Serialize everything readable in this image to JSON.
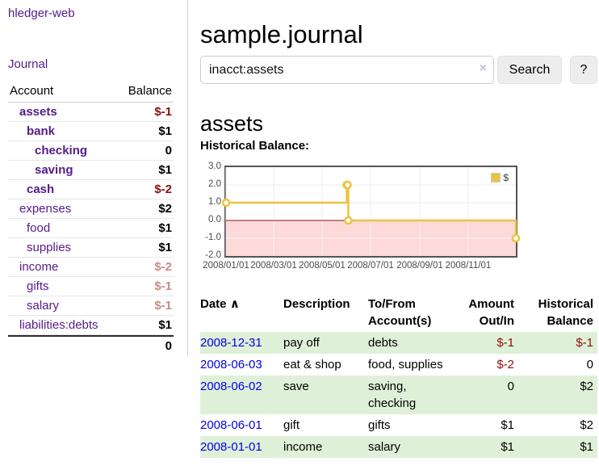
{
  "app": {
    "brand": "hledger-web",
    "nav_journal": "Journal"
  },
  "sidebar": {
    "headers": {
      "account": "Account",
      "balance": "Balance"
    },
    "accounts": [
      {
        "name": "assets",
        "balance": "$-1",
        "name_cls": "lvl1 emph",
        "bal_cls": "emph neg-strong"
      },
      {
        "name": "bank",
        "balance": "$1",
        "name_cls": "lvl2 emph",
        "bal_cls": "emph"
      },
      {
        "name": "checking",
        "balance": "0",
        "name_cls": "lvl3 emph",
        "bal_cls": "emph"
      },
      {
        "name": "saving",
        "balance": "$1",
        "name_cls": "lvl3 emph",
        "bal_cls": "emph"
      },
      {
        "name": "cash",
        "balance": "$-2",
        "name_cls": "lvl2 emph",
        "bal_cls": "emph neg-strong"
      },
      {
        "name": "expenses",
        "balance": "$2",
        "name_cls": "lvl1",
        "bal_cls": ""
      },
      {
        "name": "food",
        "balance": "$1",
        "name_cls": "lvl2",
        "bal_cls": ""
      },
      {
        "name": "supplies",
        "balance": "$1",
        "name_cls": "lvl2",
        "bal_cls": ""
      },
      {
        "name": "income",
        "balance": "$-2",
        "name_cls": "lvl1",
        "bal_cls": "neg-soft"
      },
      {
        "name": "gifts",
        "balance": "$-1",
        "name_cls": "lvl2",
        "bal_cls": "neg-soft"
      },
      {
        "name": "salary",
        "balance": "$-1",
        "name_cls": "lvl2 unvisited",
        "bal_cls": "neg-soft"
      },
      {
        "name": "liabilities:debts",
        "balance": "$1",
        "name_cls": "lvl1",
        "bal_cls": ""
      }
    ],
    "total": "0"
  },
  "header": {
    "title": "sample.journal"
  },
  "search": {
    "value": "inacct:assets",
    "clear_icon": "×",
    "search_button": "Search",
    "help_button": "?"
  },
  "account_page": {
    "heading": "assets"
  },
  "chart_data": {
    "type": "line",
    "title": "Historical Balance:",
    "xlabel": "",
    "ylabel": "",
    "xlim": [
      "2008-01-01",
      "2008-12-31"
    ],
    "ylim": [
      -2,
      3
    ],
    "x_ticks": [
      "2008/01/01",
      "2008/03/01",
      "2008/05/01",
      "2008/07/01",
      "2008/09/01",
      "2008/11/01"
    ],
    "y_ticks": [
      "3.0",
      "2.0",
      "1.0",
      "0.0",
      "-1.0",
      "-2.0"
    ],
    "grid": true,
    "legend_position": "top-right",
    "negative_region_color": "#fcdada",
    "zero_line_color": "#8b1010",
    "series": [
      {
        "name": "$",
        "color": "#edc240",
        "step": true,
        "points": [
          [
            "2008-01-01",
            1
          ],
          [
            "2008-06-01",
            2
          ],
          [
            "2008-06-02",
            2
          ],
          [
            "2008-06-03",
            0
          ],
          [
            "2008-12-31",
            -1
          ]
        ]
      }
    ]
  },
  "register": {
    "headers": {
      "date": "Date",
      "sort_icon": "∧",
      "description": "Description",
      "accounts": "To/From Account(s)",
      "amount": "Amount Out/In",
      "balance": "Historical Balance"
    },
    "rows": [
      {
        "date": "2008-12-31",
        "description": "pay off",
        "accounts": "debts",
        "amount": "$-1",
        "amount_cls": "neg",
        "balance": "$-1",
        "balance_cls": "neg"
      },
      {
        "date": "2008-06-03",
        "description": "eat & shop",
        "accounts": "food, supplies",
        "amount": "$-2",
        "amount_cls": "neg",
        "balance": "0",
        "balance_cls": ""
      },
      {
        "date": "2008-06-02",
        "description": "save",
        "accounts": "saving, checking",
        "amount": "0",
        "amount_cls": "",
        "balance": "$2",
        "balance_cls": ""
      },
      {
        "date": "2008-06-01",
        "description": "gift",
        "accounts": "gifts",
        "amount": "$1",
        "amount_cls": "",
        "balance": "$2",
        "balance_cls": ""
      },
      {
        "date": "2008-01-01",
        "description": "income",
        "accounts": "salary",
        "amount": "$1",
        "amount_cls": "",
        "balance": "$1",
        "balance_cls": ""
      }
    ]
  }
}
